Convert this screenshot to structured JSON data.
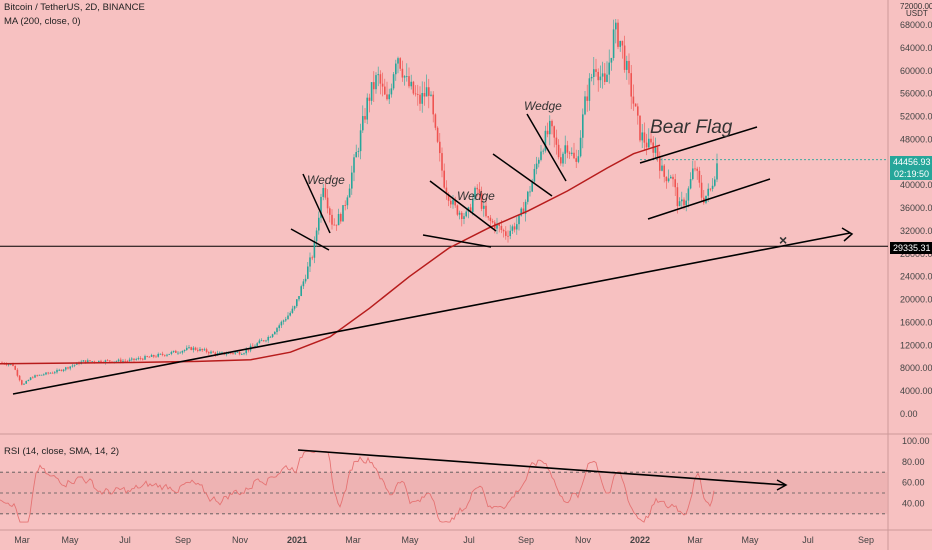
{
  "header": {
    "symbol": "Bitcoin / TetherUS, 2D, BINANCE",
    "ma_label": "MA (200, close, 0)",
    "rsi_label": "RSI (14, close, SMA, 14, 2)"
  },
  "price_axis": {
    "top_label": "72000.00",
    "currency": "USDT",
    "ticks": [
      "68000.00",
      "64000.00",
      "60000.00",
      "56000.00",
      "52000.00",
      "48000.00",
      "44000.00",
      "40000.00",
      "36000.00",
      "32000.00",
      "28000.00",
      "24000.00",
      "20000.00",
      "16000.00",
      "12000.00",
      "8000.00",
      "4000.00",
      "0.00"
    ]
  },
  "price_tags": {
    "last_price": "44456.93",
    "countdown": "02:19:50",
    "support_level": "29335.31",
    "last_price_color": "#26a69a",
    "support_color": "#000000"
  },
  "rsi_axis": {
    "ticks": [
      "100.00",
      "80.00",
      "60.00",
      "40.00"
    ]
  },
  "time_axis": {
    "labels": [
      "Mar",
      "May",
      "Jul",
      "Sep",
      "Nov",
      "2021",
      "Mar",
      "May",
      "Jul",
      "Sep",
      "Nov",
      "2022",
      "Mar",
      "May",
      "Jul",
      "Sep"
    ]
  },
  "annotations": {
    "wedge1": "Wedge",
    "wedge2": "Wedge",
    "wedge3": "Wedge",
    "bear_flag": "Bear Flag",
    "target_marker": "×"
  },
  "colors": {
    "background": "#f7c1c1",
    "up_candle": "#26a69a",
    "down_candle": "#ef5350",
    "ma_line": "#b71c1c",
    "rsi_line": "#e57373",
    "rsi_band": "#e8a8a8",
    "trendline": "#000000",
    "target_marker": "#d32f2f"
  },
  "chart_data": {
    "type": "candlestick",
    "title": "Bitcoin / TetherUS, 2D, BINANCE",
    "ylabel": "USDT",
    "y_ticks": [
      0,
      4000,
      8000,
      12000,
      16000,
      20000,
      24000,
      28000,
      32000,
      36000,
      40000,
      44000,
      48000,
      52000,
      56000,
      60000,
      64000,
      68000
    ],
    "x_ticks": [
      "Mar",
      "May",
      "Jul",
      "Sep",
      "Nov",
      "2021",
      "Mar",
      "May",
      "Jul",
      "Sep",
      "Nov",
      "2022",
      "Mar",
      "May",
      "Jul",
      "Sep"
    ],
    "price_path": [
      {
        "t": 0,
        "v": 9000
      },
      {
        "t": 0.02,
        "v": 8600
      },
      {
        "t": 0.035,
        "v": 5000
      },
      {
        "t": 0.05,
        "v": 6500
      },
      {
        "t": 0.09,
        "v": 7500
      },
      {
        "t": 0.13,
        "v": 9200
      },
      {
        "t": 0.2,
        "v": 9300
      },
      {
        "t": 0.26,
        "v": 10500
      },
      {
        "t": 0.3,
        "v": 11500
      },
      {
        "t": 0.34,
        "v": 10500
      },
      {
        "t": 0.38,
        "v": 10800
      },
      {
        "t": 0.42,
        "v": 13500
      },
      {
        "t": 0.46,
        "v": 18500
      },
      {
        "t": 0.49,
        "v": 28500
      },
      {
        "t": 0.505,
        "v": 40500
      },
      {
        "t": 0.52,
        "v": 33000
      },
      {
        "t": 0.535,
        "v": 35000
      },
      {
        "t": 0.56,
        "v": 47000
      },
      {
        "t": 0.575,
        "v": 55000
      },
      {
        "t": 0.59,
        "v": 59000
      },
      {
        "t": 0.605,
        "v": 54000
      },
      {
        "t": 0.62,
        "v": 63500
      },
      {
        "t": 0.635,
        "v": 58000
      },
      {
        "t": 0.655,
        "v": 54500
      },
      {
        "t": 0.67,
        "v": 57000
      },
      {
        "t": 0.68,
        "v": 49000
      },
      {
        "t": 0.695,
        "v": 40000
      },
      {
        "t": 0.71,
        "v": 36000
      },
      {
        "t": 0.73,
        "v": 34500
      },
      {
        "t": 0.745,
        "v": 39500
      },
      {
        "t": 0.76,
        "v": 34000
      },
      {
        "t": 0.775,
        "v": 33000
      },
      {
        "t": 0.79,
        "v": 31500
      },
      {
        "t": 0.81,
        "v": 33500
      },
      {
        "t": 0.83,
        "v": 40000
      },
      {
        "t": 0.845,
        "v": 46500
      },
      {
        "t": 0.86,
        "v": 50000
      },
      {
        "t": 0.875,
        "v": 44500
      },
      {
        "t": 0.885,
        "v": 47500
      },
      {
        "t": 0.9,
        "v": 43500
      },
      {
        "t": 0.915,
        "v": 55000
      },
      {
        "t": 0.93,
        "v": 61500
      },
      {
        "t": 0.945,
        "v": 57000
      },
      {
        "t": 0.96,
        "v": 67000
      },
      {
        "t": 0.97,
        "v": 65000
      },
      {
        "t": 0.985,
        "v": 57000
      },
      {
        "t": 1,
        "v": 49000
      }
    ],
    "price_path_2022": [
      {
        "t": 0,
        "v": 49000
      },
      {
        "t": 0.1,
        "v": 47000
      },
      {
        "t": 0.2,
        "v": 46500
      },
      {
        "t": 0.3,
        "v": 41500
      },
      {
        "t": 0.4,
        "v": 42000
      },
      {
        "t": 0.5,
        "v": 36000
      },
      {
        "t": 0.6,
        "v": 38000
      },
      {
        "t": 0.7,
        "v": 43500
      },
      {
        "t": 0.8,
        "v": 37500
      },
      {
        "t": 0.9,
        "v": 39000
      },
      {
        "t": 1,
        "v": 44456.93
      }
    ],
    "ma200": [
      {
        "t": 0,
        "v": 8800
      },
      {
        "t": 0.1,
        "v": 8900
      },
      {
        "t": 0.2,
        "v": 9000
      },
      {
        "t": 0.3,
        "v": 9200
      },
      {
        "t": 0.38,
        "v": 9500
      },
      {
        "t": 0.44,
        "v": 10800
      },
      {
        "t": 0.5,
        "v": 13500
      },
      {
        "t": 0.56,
        "v": 18500
      },
      {
        "t": 0.62,
        "v": 24000
      },
      {
        "t": 0.68,
        "v": 29000
      },
      {
        "t": 0.74,
        "v": 32500
      },
      {
        "t": 0.8,
        "v": 35500
      },
      {
        "t": 0.86,
        "v": 39000
      },
      {
        "t": 0.92,
        "v": 43000
      },
      {
        "t": 0.96,
        "v": 45500
      },
      {
        "t": 1,
        "v": 47000
      }
    ],
    "support_level": 29335.31,
    "last_price": 44456.93,
    "rsi": {
      "ticks": [
        100,
        80,
        60,
        40
      ],
      "upper_band": 70,
      "middle": 50,
      "lower_band": 30
    }
  }
}
